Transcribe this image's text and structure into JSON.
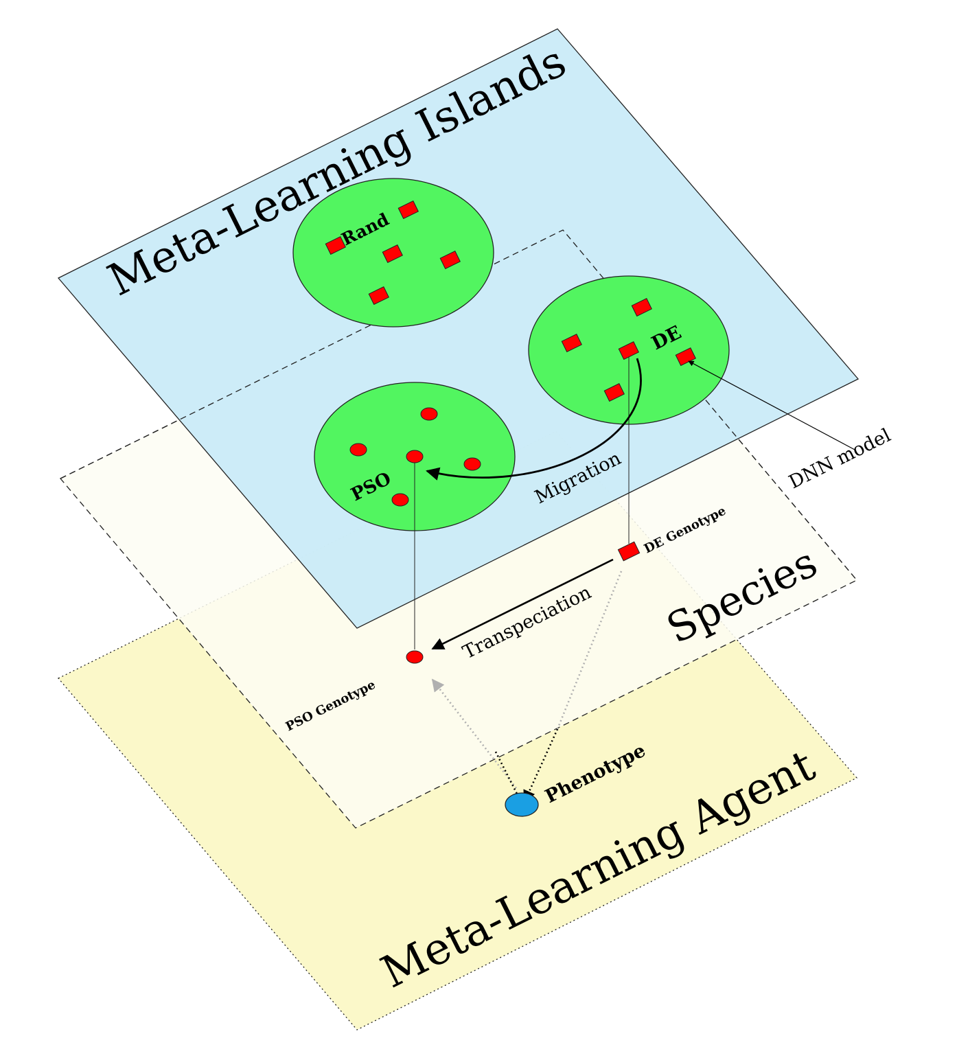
{
  "layers": {
    "agent": {
      "label": "Meta-Learning Agent"
    },
    "species": {
      "label": "Species"
    },
    "islands": {
      "label": "Meta-Learning Islands"
    }
  },
  "islands": {
    "rand": {
      "label": "Rand"
    },
    "de": {
      "label": "DE"
    },
    "pso": {
      "label": "PSO"
    }
  },
  "arrows": {
    "migration": "Migration",
    "transpeciation": "Transpeciation",
    "dnn_model": "DNN model"
  },
  "nodes": {
    "de_genotype": "DE Genotype",
    "pso_genotype": "PSO Genotype",
    "phenotype": "Phenotype"
  },
  "colors": {
    "agent_plane": "#fbf8c9",
    "species_plane": "#fdfdf3",
    "islands_plane": "#c9ebf8",
    "island": "#52f560",
    "individual": "#ff0000",
    "phenotype": "#1a9fe3"
  }
}
